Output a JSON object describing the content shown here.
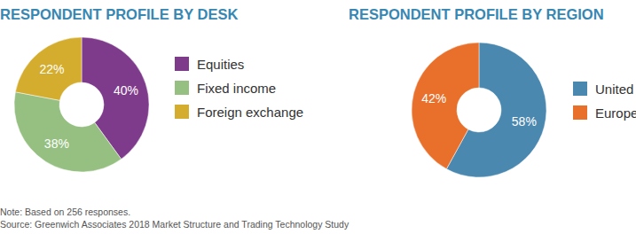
{
  "chart_data": [
    {
      "type": "pie",
      "title": "RESPONDENT PROFILE BY DESK",
      "categories": [
        "Equities",
        "Fixed income",
        "Foreign exchange"
      ],
      "values": [
        40,
        38,
        22
      ],
      "value_labels": [
        "40%",
        "38%",
        "22%"
      ],
      "colors": [
        "#7e3a8b",
        "#95c081",
        "#d4ad2f"
      ],
      "data_labels": true,
      "legend": "right"
    },
    {
      "type": "pie",
      "title": "RESPONDENT PROFILE BY REGION",
      "categories": [
        "United States",
        "Europe"
      ],
      "values": [
        58,
        42
      ],
      "value_labels": [
        "58%",
        "42%"
      ],
      "colors": [
        "#4a88b0",
        "#e8702b"
      ],
      "data_labels": true,
      "legend": "right"
    }
  ],
  "note": "Note: Based on 256 responses.",
  "source": "Source: Greenwich Associates 2018 Market Structure and Trading Technology Study"
}
